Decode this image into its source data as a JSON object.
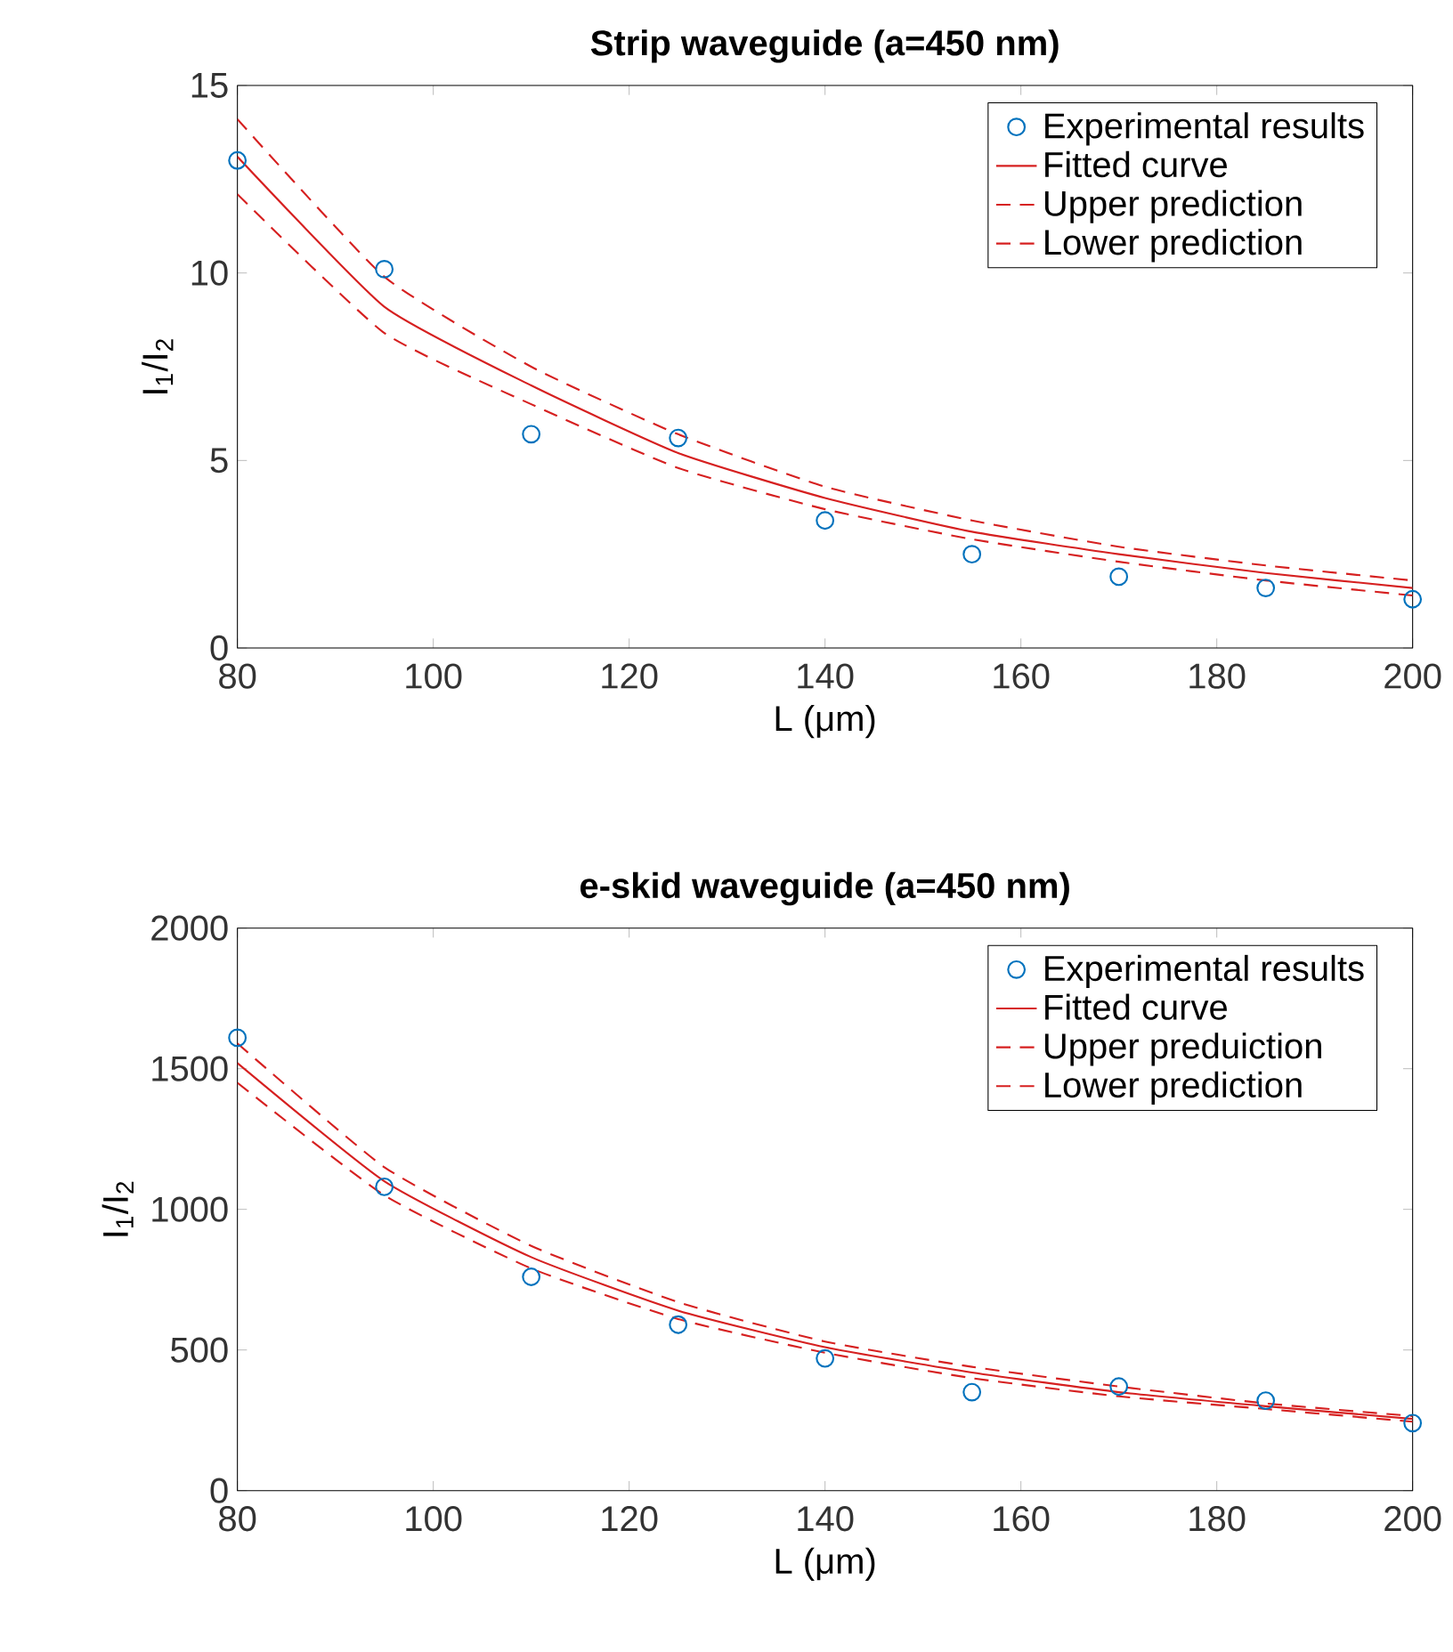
{
  "chart_data": [
    {
      "type": "line",
      "title": "Strip waveguide (a=450 nm)",
      "xlabel": "L (μm)",
      "ylabel": "I$_{1}$/I$_{2}$",
      "x": [
        80,
        95,
        110,
        125,
        140,
        155,
        170,
        185,
        200
      ],
      "xlim": [
        80,
        200
      ],
      "xticks": [
        80,
        100,
        120,
        140,
        160,
        180,
        200
      ],
      "ylim": [
        0,
        15
      ],
      "yticks": [
        0,
        5,
        10,
        15
      ],
      "legend": "top right",
      "series": [
        {
          "name": "Experimental results",
          "type": "scatter",
          "marker": "circle",
          "color": "#0072bd",
          "values": [
            13.0,
            10.1,
            5.7,
            5.6,
            3.4,
            2.5,
            1.9,
            1.6,
            1.3
          ]
        },
        {
          "name": "Fitted curve",
          "line_style": "solid",
          "color": "#d62020",
          "values": [
            13.1,
            9.1,
            7.0,
            5.2,
            4.0,
            3.1,
            2.5,
            2.0,
            1.6
          ]
        },
        {
          "name": "Upper prediction",
          "line_style": "dashed",
          "color": "#d62020",
          "values": [
            14.1,
            9.9,
            7.5,
            5.7,
            4.3,
            3.4,
            2.7,
            2.2,
            1.8
          ]
        },
        {
          "name": "Lower prediction",
          "line_style": "dashed",
          "color": "#d62020",
          "values": [
            12.1,
            8.4,
            6.5,
            4.8,
            3.7,
            2.9,
            2.3,
            1.8,
            1.4
          ]
        }
      ]
    },
    {
      "type": "line",
      "title": "e-skid waveguide (a=450 nm)",
      "xlabel": "L (μm)",
      "ylabel": "I$_{1}$/I$_{2}$",
      "x": [
        80,
        95,
        110,
        125,
        140,
        155,
        170,
        185,
        200
      ],
      "xlim": [
        80,
        200
      ],
      "xticks": [
        80,
        100,
        120,
        140,
        160,
        180,
        200
      ],
      "ylim": [
        0,
        2000
      ],
      "yticks": [
        0,
        500,
        1000,
        1500,
        2000
      ],
      "legend": "top right",
      "series": [
        {
          "name": "Experimental results",
          "type": "scatter",
          "marker": "circle",
          "color": "#0072bd",
          "values": [
            1610,
            1080,
            760,
            590,
            470,
            350,
            370,
            320,
            240
          ]
        },
        {
          "name": "Fitted curve",
          "line_style": "solid",
          "color": "#d62020",
          "values": [
            1520,
            1100,
            830,
            640,
            510,
            420,
            350,
            300,
            255
          ]
        },
        {
          "name": "Upper preduiction",
          "line_style": "dashed",
          "color": "#d62020",
          "values": [
            1590,
            1150,
            870,
            670,
            530,
            440,
            370,
            310,
            265
          ]
        },
        {
          "name": "Lower prediction",
          "line_style": "dashed",
          "color": "#d62020",
          "values": [
            1450,
            1050,
            790,
            610,
            490,
            400,
            335,
            290,
            245
          ]
        }
      ]
    }
  ]
}
